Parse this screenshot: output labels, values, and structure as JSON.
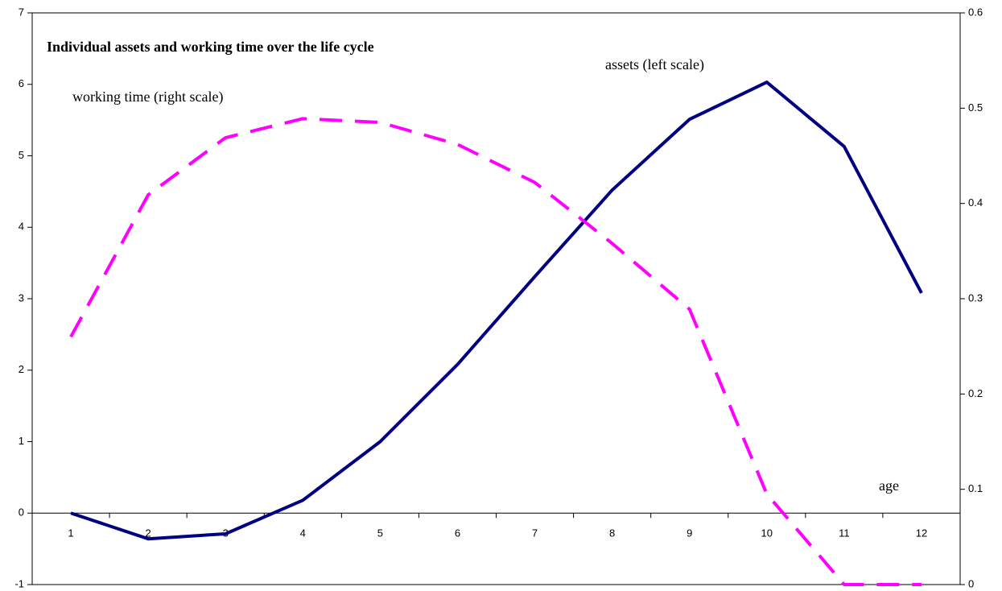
{
  "chart_data": {
    "type": "line",
    "title": "Individual assets and working time over the life cycle",
    "annotations": [
      "assets (left scale)",
      "working time (right scale)",
      "age"
    ],
    "categories": [
      "1",
      "2",
      "3",
      "4",
      "5",
      "6",
      "7",
      "8",
      "9",
      "10",
      "11",
      "12"
    ],
    "series": [
      {
        "name": "assets (left scale)",
        "color": "#000080",
        "axis": "y",
        "dash": false,
        "values": [
          0,
          -0.36,
          -0.29,
          0.18,
          1.0,
          2.08,
          3.31,
          4.52,
          5.51,
          6.03,
          5.13,
          3.08
        ]
      },
      {
        "name": "working time (right scale)",
        "color": "#ff00ff",
        "axis": "y2",
        "dash": true,
        "values": [
          0.26,
          0.409,
          0.469,
          0.489,
          0.485,
          0.462,
          0.422,
          0.358,
          0.289,
          0.095,
          0,
          0
        ]
      }
    ],
    "ylim": [
      -1,
      7
    ],
    "yticks": [
      -1,
      0,
      1,
      2,
      3,
      4,
      5,
      6,
      7
    ],
    "y2lim": [
      0,
      0.6
    ],
    "y2ticks": [
      0,
      0.1,
      0.2,
      0.3,
      0.4,
      0.5,
      0.6
    ],
    "grid": false
  }
}
